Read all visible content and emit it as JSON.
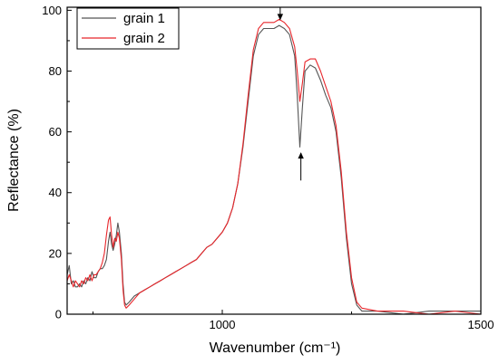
{
  "chart_data": {
    "type": "line",
    "title": "",
    "xlabel": "Wavenumber (cm⁻¹)",
    "ylabel": "Reflectance (%)",
    "xlim": [
      700,
      1500
    ],
    "ylim": [
      0,
      101
    ],
    "x_ticks": [
      1000,
      1500
    ],
    "y_ticks": [
      0,
      20,
      40,
      60,
      80,
      100
    ],
    "grid": false,
    "legend_position": "top-left",
    "series": [
      {
        "name": "grain 1",
        "color": "#555555",
        "points": [
          [
            700,
            13
          ],
          [
            704,
            16
          ],
          [
            708,
            10
          ],
          [
            712,
            11
          ],
          [
            716,
            9
          ],
          [
            720,
            9
          ],
          [
            724,
            10
          ],
          [
            728,
            9
          ],
          [
            732,
            11
          ],
          [
            736,
            10
          ],
          [
            740,
            12
          ],
          [
            744,
            11
          ],
          [
            748,
            14
          ],
          [
            752,
            12
          ],
          [
            756,
            12
          ],
          [
            760,
            14
          ],
          [
            764,
            15
          ],
          [
            768,
            15
          ],
          [
            772,
            16
          ],
          [
            776,
            18
          ],
          [
            780,
            24
          ],
          [
            783,
            27
          ],
          [
            786,
            23
          ],
          [
            789,
            21
          ],
          [
            792,
            23
          ],
          [
            795,
            26
          ],
          [
            798,
            30
          ],
          [
            801,
            27
          ],
          [
            805,
            20
          ],
          [
            808,
            10
          ],
          [
            811,
            4
          ],
          [
            814,
            3
          ],
          [
            820,
            4
          ],
          [
            830,
            6
          ],
          [
            840,
            7
          ],
          [
            850,
            8
          ],
          [
            860,
            9
          ],
          [
            870,
            10
          ],
          [
            880,
            11
          ],
          [
            890,
            12
          ],
          [
            900,
            13
          ],
          [
            910,
            14
          ],
          [
            920,
            15
          ],
          [
            930,
            16
          ],
          [
            940,
            17
          ],
          [
            950,
            18
          ],
          [
            960,
            20
          ],
          [
            970,
            22
          ],
          [
            980,
            23
          ],
          [
            990,
            25
          ],
          [
            1000,
            27
          ],
          [
            1010,
            30
          ],
          [
            1020,
            35
          ],
          [
            1030,
            43
          ],
          [
            1040,
            55
          ],
          [
            1050,
            70
          ],
          [
            1060,
            85
          ],
          [
            1070,
            92
          ],
          [
            1080,
            94
          ],
          [
            1090,
            94
          ],
          [
            1100,
            94
          ],
          [
            1110,
            95
          ],
          [
            1120,
            94
          ],
          [
            1130,
            92
          ],
          [
            1140,
            85
          ],
          [
            1145,
            72
          ],
          [
            1150,
            55
          ],
          [
            1155,
            68
          ],
          [
            1160,
            80
          ],
          [
            1170,
            82
          ],
          [
            1180,
            81
          ],
          [
            1190,
            77
          ],
          [
            1200,
            72
          ],
          [
            1210,
            68
          ],
          [
            1220,
            60
          ],
          [
            1230,
            45
          ],
          [
            1240,
            25
          ],
          [
            1250,
            10
          ],
          [
            1260,
            3
          ],
          [
            1270,
            1
          ],
          [
            1300,
            1
          ],
          [
            1350,
            0
          ],
          [
            1400,
            1
          ],
          [
            1450,
            1
          ],
          [
            1500,
            1
          ]
        ]
      },
      {
        "name": "grain 2",
        "color": "#e8262b",
        "points": [
          [
            700,
            11
          ],
          [
            704,
            13
          ],
          [
            708,
            11
          ],
          [
            712,
            9
          ],
          [
            716,
            11
          ],
          [
            720,
            10
          ],
          [
            724,
            9
          ],
          [
            728,
            11
          ],
          [
            732,
            10
          ],
          [
            736,
            12
          ],
          [
            740,
            11
          ],
          [
            744,
            13
          ],
          [
            748,
            11
          ],
          [
            752,
            13
          ],
          [
            756,
            13
          ],
          [
            760,
            14
          ],
          [
            764,
            15
          ],
          [
            768,
            17
          ],
          [
            772,
            20
          ],
          [
            776,
            26
          ],
          [
            780,
            31
          ],
          [
            783,
            32
          ],
          [
            786,
            26
          ],
          [
            789,
            22
          ],
          [
            792,
            25
          ],
          [
            795,
            24
          ],
          [
            798,
            27
          ],
          [
            801,
            25
          ],
          [
            805,
            18
          ],
          [
            808,
            8
          ],
          [
            811,
            3
          ],
          [
            814,
            2
          ],
          [
            820,
            3
          ],
          [
            830,
            5
          ],
          [
            840,
            7
          ],
          [
            850,
            8
          ],
          [
            860,
            9
          ],
          [
            870,
            10
          ],
          [
            880,
            11
          ],
          [
            890,
            12
          ],
          [
            900,
            13
          ],
          [
            910,
            14
          ],
          [
            920,
            15
          ],
          [
            930,
            16
          ],
          [
            940,
            17
          ],
          [
            950,
            18
          ],
          [
            960,
            20
          ],
          [
            970,
            22
          ],
          [
            980,
            23
          ],
          [
            990,
            25
          ],
          [
            1000,
            27
          ],
          [
            1010,
            30
          ],
          [
            1020,
            35
          ],
          [
            1030,
            43
          ],
          [
            1040,
            56
          ],
          [
            1050,
            72
          ],
          [
            1060,
            87
          ],
          [
            1070,
            94
          ],
          [
            1080,
            96
          ],
          [
            1090,
            96
          ],
          [
            1100,
            96
          ],
          [
            1110,
            97
          ],
          [
            1120,
            96
          ],
          [
            1130,
            94
          ],
          [
            1140,
            88
          ],
          [
            1145,
            80
          ],
          [
            1150,
            70
          ],
          [
            1155,
            76
          ],
          [
            1160,
            83
          ],
          [
            1170,
            84
          ],
          [
            1180,
            84
          ],
          [
            1190,
            80
          ],
          [
            1200,
            75
          ],
          [
            1210,
            70
          ],
          [
            1220,
            62
          ],
          [
            1230,
            47
          ],
          [
            1240,
            27
          ],
          [
            1250,
            12
          ],
          [
            1260,
            4
          ],
          [
            1270,
            2
          ],
          [
            1300,
            1
          ],
          [
            1350,
            1
          ],
          [
            1400,
            0
          ],
          [
            1450,
            1
          ],
          [
            1500,
            0
          ]
        ]
      }
    ],
    "annotations": [
      {
        "type": "arrow",
        "direction": "down",
        "x": 1112,
        "y_from": 101,
        "y_to": 97
      },
      {
        "type": "arrow",
        "direction": "up",
        "x": 1152,
        "y_from": 44,
        "y_to": 53
      }
    ]
  }
}
